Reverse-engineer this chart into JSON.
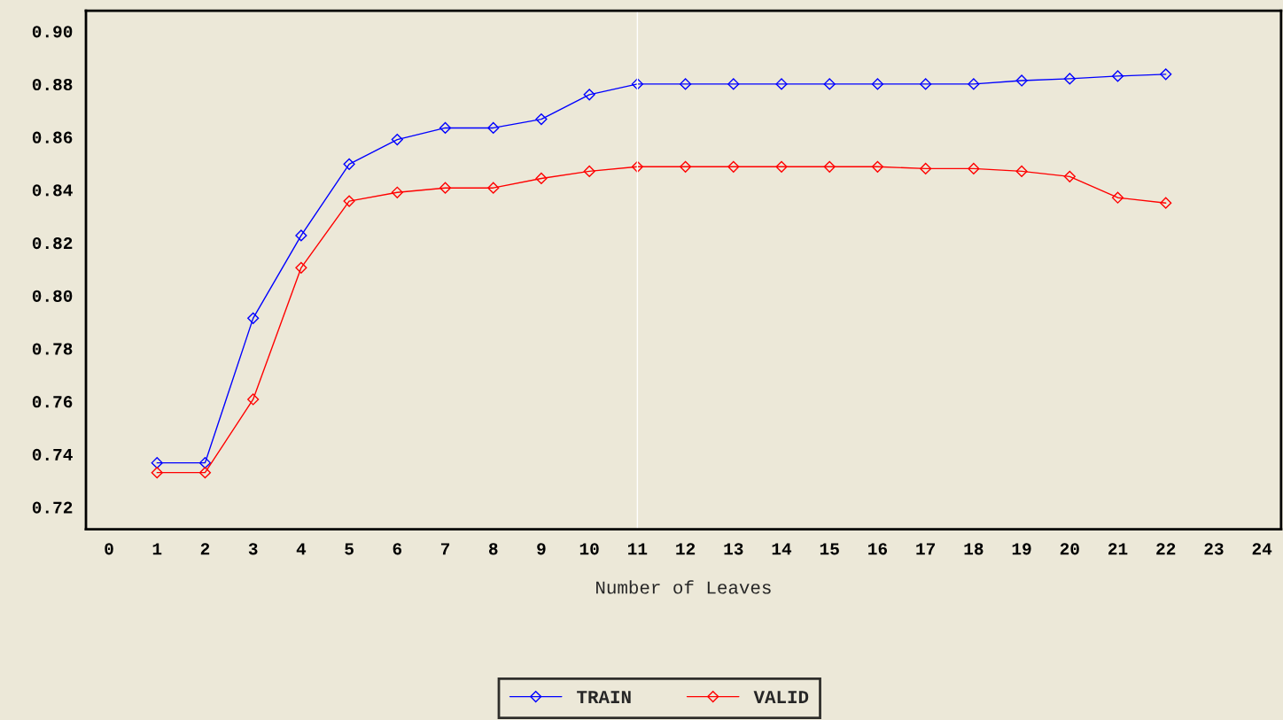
{
  "chart_data": {
    "type": "line",
    "xlabel": "Number of Leaves",
    "x": [
      1,
      2,
      3,
      4,
      5,
      6,
      7,
      8,
      9,
      10,
      11,
      12,
      13,
      14,
      15,
      16,
      17,
      18,
      19,
      20,
      21,
      22
    ],
    "series": [
      {
        "name": "TRAIN",
        "color": "#0000ff",
        "values": [
          0.7367,
          0.7367,
          0.7914,
          0.8227,
          0.8497,
          0.859,
          0.8634,
          0.8634,
          0.8667,
          0.876,
          0.88,
          0.88,
          0.88,
          0.88,
          0.88,
          0.88,
          0.88,
          0.88,
          0.8813,
          0.882,
          0.883,
          0.8837
        ]
      },
      {
        "name": "VALID",
        "color": "#ff0000",
        "values": [
          0.733,
          0.733,
          0.7607,
          0.8105,
          0.8357,
          0.839,
          0.8407,
          0.8407,
          0.8443,
          0.847,
          0.8487,
          0.8487,
          0.8487,
          0.8487,
          0.8487,
          0.8487,
          0.848,
          0.848,
          0.847,
          0.845,
          0.837,
          0.835
        ]
      }
    ],
    "xlim": [
      -0.48,
      24.4
    ],
    "xticks": [
      0,
      1,
      2,
      3,
      4,
      5,
      6,
      7,
      8,
      9,
      10,
      11,
      12,
      13,
      14,
      15,
      16,
      17,
      18,
      19,
      20,
      21,
      22,
      23,
      24
    ],
    "ylim": [
      0.7116,
      0.9077
    ],
    "yticks": [
      {
        "value": 0.72,
        "label": "0.72"
      },
      {
        "value": 0.74,
        "label": "0.74"
      },
      {
        "value": 0.76,
        "label": "0.76"
      },
      {
        "value": 0.78,
        "label": "0.78"
      },
      {
        "value": 0.8,
        "label": "0.80"
      },
      {
        "value": 0.82,
        "label": "0.82"
      },
      {
        "value": 0.84,
        "label": "0.84"
      },
      {
        "value": 0.86,
        "label": "0.86"
      },
      {
        "value": 0.88,
        "label": "0.88"
      },
      {
        "value": 0.9,
        "label": "0.90"
      }
    ],
    "ref_lines": [
      {
        "axis": "x",
        "value": 11,
        "color": "#ffffff"
      }
    ],
    "marker": "diamond",
    "line_style": "solid",
    "grid": false,
    "legend": "bottom"
  }
}
